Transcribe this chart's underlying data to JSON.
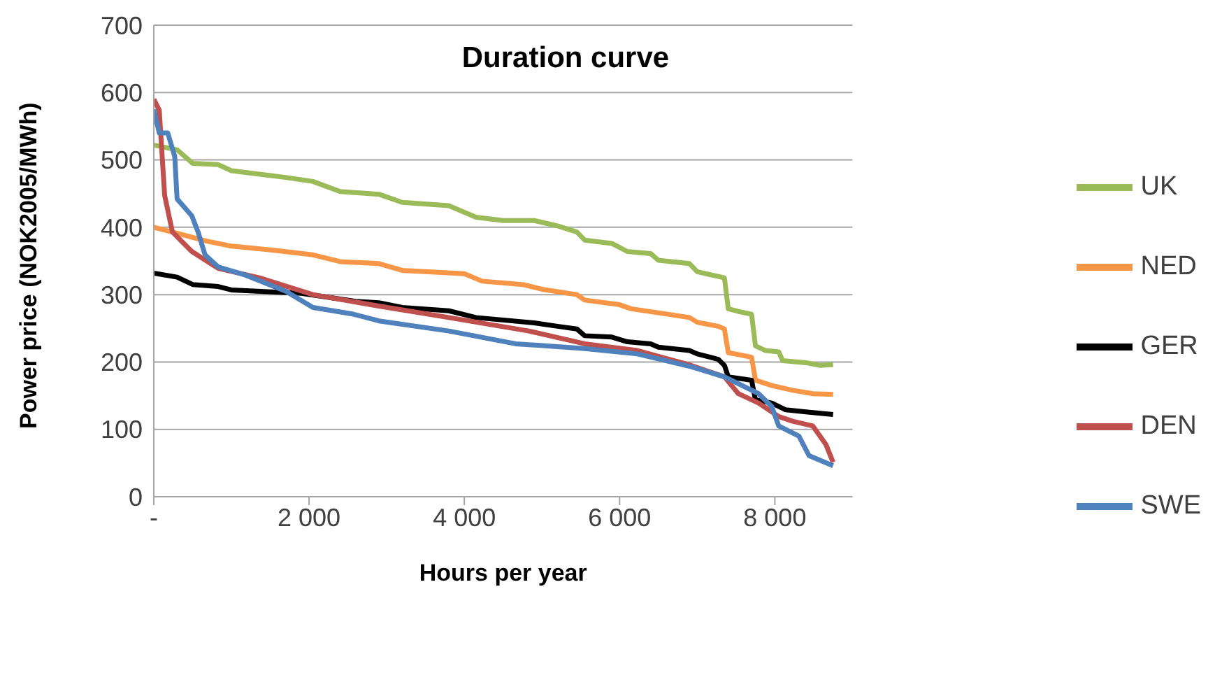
{
  "chart_data": {
    "type": "line",
    "title": "Duration curve",
    "xlabel": "Hours per year",
    "ylabel": "Power price (NOK2005/MWh)",
    "xlim": [
      0,
      9000
    ],
    "xticks": [
      {
        "value": 0,
        "label": "-"
      },
      {
        "value": 2000,
        "label": "2 000"
      },
      {
        "value": 4000,
        "label": "4 000"
      },
      {
        "value": 6000,
        "label": "6 000"
      },
      {
        "value": 8000,
        "label": "8 000"
      }
    ],
    "ylim": [
      0,
      700
    ],
    "yticks": [
      0,
      100,
      200,
      300,
      400,
      500,
      600,
      700
    ],
    "grid": "y",
    "legend": "right",
    "marker": "none",
    "line_style": "solid",
    "series": [
      {
        "name": "UK",
        "color": "#9bbb59",
        "x": [
          0,
          300,
          500,
          830,
          1000,
          1700,
          2050,
          2400,
          2900,
          3200,
          3800,
          4150,
          4500,
          4900,
          5200,
          5450,
          5550,
          5900,
          6100,
          6400,
          6500,
          6900,
          7000,
          7270,
          7350,
          7400,
          7530,
          7700,
          7750,
          7880,
          8050,
          8100,
          8400,
          8580,
          8750
        ],
        "values": [
          522,
          515,
          495,
          493,
          484,
          474,
          468,
          453,
          449,
          437,
          432,
          415,
          410,
          410,
          402,
          393,
          381,
          376,
          364,
          361,
          351,
          346,
          334,
          327,
          325,
          279,
          275,
          271,
          224,
          217,
          215,
          202,
          199,
          195,
          196
        ]
      },
      {
        "name": "NED",
        "color": "#f79646",
        "x": [
          0,
          400,
          660,
          1000,
          1530,
          2050,
          2400,
          2900,
          3200,
          4000,
          4230,
          4750,
          5000,
          5450,
          5550,
          6000,
          6150,
          6500,
          6900,
          7000,
          7270,
          7350,
          7400,
          7700,
          7750,
          7960,
          8230,
          8490,
          8750
        ],
        "values": [
          400,
          388,
          380,
          372,
          366,
          359,
          349,
          346,
          336,
          331,
          320,
          315,
          308,
          300,
          292,
          285,
          279,
          273,
          266,
          259,
          253,
          249,
          214,
          207,
          173,
          165,
          158,
          153,
          152
        ]
      },
      {
        "name": "GER",
        "color": "#000000",
        "x": [
          0,
          300,
          500,
          830,
          1000,
          1900,
          2600,
          2900,
          3200,
          3800,
          4150,
          4900,
          5200,
          5450,
          5550,
          5900,
          6100,
          6400,
          6500,
          6900,
          7000,
          7270,
          7350,
          7400,
          7700,
          7750,
          7960,
          8140,
          8400,
          8750
        ],
        "values": [
          332,
          326,
          315,
          312,
          307,
          302,
          290,
          288,
          281,
          276,
          266,
          258,
          253,
          249,
          239,
          237,
          230,
          227,
          222,
          217,
          212,
          204,
          195,
          178,
          173,
          144,
          139,
          129,
          126,
          122
        ]
      },
      {
        "name": "DEN",
        "color": "#c0504d",
        "x": [
          0,
          70,
          140,
          240,
          490,
          830,
          1360,
          2050,
          2900,
          3800,
          4830,
          5550,
          6230,
          6920,
          7350,
          7530,
          7790,
          8050,
          8230,
          8490,
          8660,
          8750
        ],
        "values": [
          590,
          574,
          447,
          393,
          364,
          339,
          325,
          300,
          283,
          266,
          246,
          227,
          217,
          195,
          178,
          153,
          139,
          119,
          112,
          105,
          77,
          51
        ]
      },
      {
        "name": "SWE",
        "color": "#4f81bd",
        "x": [
          0,
          70,
          180,
          270,
          300,
          490,
          570,
          660,
          830,
          1180,
          1700,
          2050,
          2570,
          2900,
          3800,
          4660,
          5550,
          6230,
          6920,
          7350,
          7790,
          7960,
          8050,
          8310,
          8440,
          8750
        ],
        "values": [
          575,
          540,
          540,
          505,
          442,
          417,
          393,
          359,
          341,
          329,
          305,
          281,
          271,
          261,
          246,
          227,
          220,
          212,
          193,
          178,
          153,
          134,
          105,
          90,
          61,
          46
        ]
      }
    ]
  }
}
